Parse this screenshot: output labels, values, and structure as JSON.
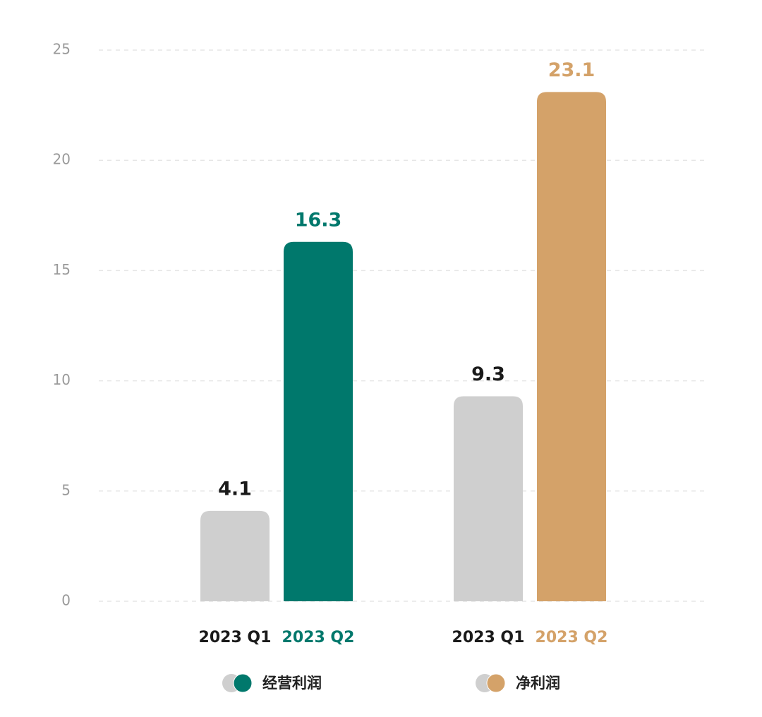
{
  "chart_data": {
    "type": "bar",
    "series": [
      {
        "name": "经营利润",
        "categories": [
          "2023 Q1",
          "2023 Q2"
        ],
        "values": [
          4.1,
          16.3
        ],
        "colors": [
          "#cfcfcf",
          "#00786c"
        ],
        "label_colors": [
          "#1a1a1a",
          "#00786c"
        ]
      },
      {
        "name": "净利润",
        "categories": [
          "2023 Q1",
          "2023 Q2"
        ],
        "values": [
          9.3,
          23.1
        ],
        "colors": [
          "#cfcfcf",
          "#d4a269"
        ],
        "label_colors": [
          "#1a1a1a",
          "#d4a269"
        ]
      }
    ],
    "ylim": [
      0,
      25
    ],
    "yticks": [
      0,
      5,
      10,
      15,
      20,
      25
    ],
    "grid": true
  }
}
